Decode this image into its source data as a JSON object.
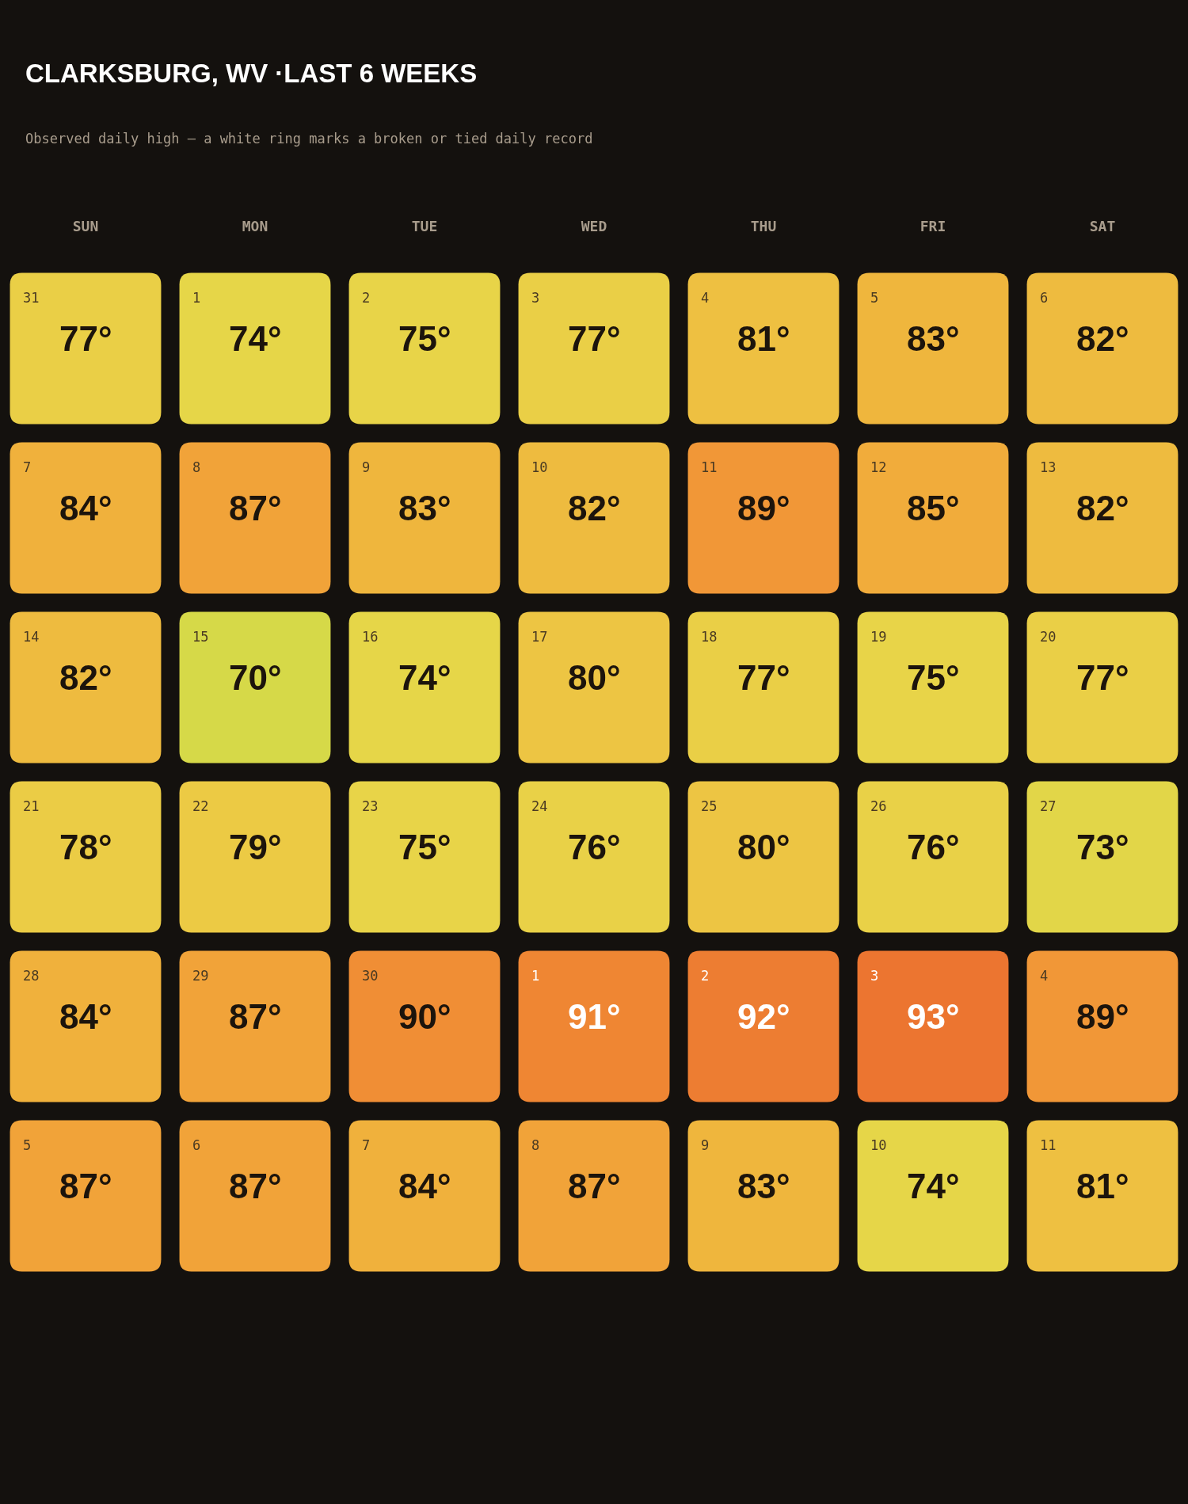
{
  "chart_data": {
    "type": "heatmap",
    "title": "CLARKSBURG, WV ·LAST 6 WEEKS",
    "subtitle": "Observed daily high — a white ring marks a broken or tied daily record",
    "categories": [
      "SUN",
      "MON",
      "TUE",
      "WED",
      "THU",
      "FRI",
      "SAT"
    ],
    "y_categories": [
      null,
      null,
      null,
      null,
      null,
      null
    ],
    "cells": [
      [
        77,
        74,
        75,
        77,
        81,
        83,
        82
      ],
      [
        84,
        87,
        83,
        82,
        89,
        85,
        82
      ],
      [
        82,
        70,
        74,
        80,
        77,
        75,
        77
      ],
      [
        78,
        79,
        75,
        76,
        80,
        76,
        73
      ],
      [
        84,
        87,
        90,
        91,
        92,
        93,
        89
      ],
      [
        87,
        87,
        84,
        87,
        83,
        74,
        81
      ]
    ],
    "cell_labels": [
      [
        "77°",
        "74°",
        "75°",
        "77°",
        "81°",
        "83°",
        "82°"
      ],
      [
        "84°",
        "87°",
        "83°",
        "82°",
        "89°",
        "85°",
        "82°"
      ],
      [
        "82°",
        "70°",
        "74°",
        "80°",
        "77°",
        "75°",
        "77°"
      ],
      [
        "78°",
        "79°",
        "75°",
        "76°",
        "80°",
        "76°",
        "73°"
      ],
      [
        "84°",
        "87°",
        "90°",
        "91°",
        "92°",
        "93°",
        "89°"
      ],
      [
        "87°",
        "87°",
        "84°",
        "87°",
        "83°",
        "74°",
        "81°"
      ]
    ],
    "annotations": [
      "31",
      "1",
      "2",
      "3",
      "4",
      "5",
      "6",
      "7",
      "8",
      "9",
      "10",
      "11",
      "12",
      "13",
      "14",
      "15",
      "16",
      "17",
      "18",
      "19",
      "20",
      "21",
      "22",
      "23",
      "24",
      "25",
      "26",
      "27",
      "28",
      "29",
      "30",
      "1",
      "2",
      "3",
      "4",
      "5",
      "6",
      "7",
      "8",
      "9",
      "10",
      "11"
    ]
  }
}
